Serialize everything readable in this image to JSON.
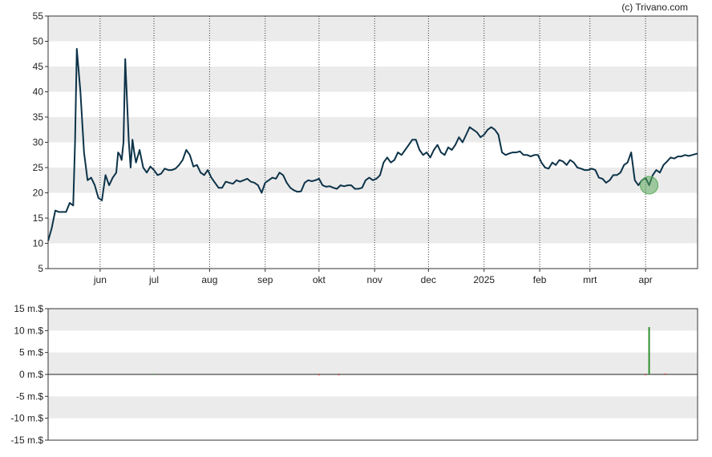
{
  "credit": "(c) Trivano.com",
  "chart_data": [
    {
      "type": "line",
      "ylim": [
        5,
        55
      ],
      "yticks": [
        5,
        10,
        15,
        20,
        25,
        30,
        35,
        40,
        45,
        50,
        55
      ],
      "x_range": [
        "2024-05-03",
        "2025-04-30"
      ],
      "month_ticks": [
        {
          "label": "jun",
          "date": "2024-06-01"
        },
        {
          "label": "jul",
          "date": "2024-07-01"
        },
        {
          "label": "aug",
          "date": "2024-08-01"
        },
        {
          "label": "sep",
          "date": "2024-09-01"
        },
        {
          "label": "okt",
          "date": "2024-10-01"
        },
        {
          "label": "nov",
          "date": "2024-11-01"
        },
        {
          "label": "dec",
          "date": "2024-12-01"
        },
        {
          "label": "2025",
          "date": "2025-01-01"
        },
        {
          "label": "feb",
          "date": "2025-02-01"
        },
        {
          "label": "mrt",
          "date": "2025-03-01"
        },
        {
          "label": "apr",
          "date": "2025-04-01"
        }
      ],
      "series": [
        {
          "color": "#0d3349",
          "points": [
            [
              "2024-05-03",
              10.5
            ],
            [
              "2024-05-05",
              13
            ],
            [
              "2024-05-07",
              16.5
            ],
            [
              "2024-05-09",
              16.2
            ],
            [
              "2024-05-13",
              16.2
            ],
            [
              "2024-05-15",
              18
            ],
            [
              "2024-05-17",
              17.5
            ],
            [
              "2024-05-18",
              30
            ],
            [
              "2024-05-19",
              48.5
            ],
            [
              "2024-05-21",
              40
            ],
            [
              "2024-05-23",
              28
            ],
            [
              "2024-05-25",
              22.5
            ],
            [
              "2024-05-27",
              23
            ],
            [
              "2024-05-29",
              21.5
            ],
            [
              "2024-05-31",
              19
            ],
            [
              "2024-06-02",
              18.5
            ],
            [
              "2024-06-04",
              23.5
            ],
            [
              "2024-06-06",
              21.5
            ],
            [
              "2024-06-08",
              23
            ],
            [
              "2024-06-10",
              24
            ],
            [
              "2024-06-11",
              28
            ],
            [
              "2024-06-12",
              27.5
            ],
            [
              "2024-06-13",
              26.5
            ],
            [
              "2024-06-14",
              30
            ],
            [
              "2024-06-15",
              46.5
            ],
            [
              "2024-06-16",
              38
            ],
            [
              "2024-06-17",
              30
            ],
            [
              "2024-06-18",
              25
            ],
            [
              "2024-06-19",
              30.5
            ],
            [
              "2024-06-20",
              28
            ],
            [
              "2024-06-21",
              26
            ],
            [
              "2024-06-23",
              28.5
            ],
            [
              "2024-06-25",
              25
            ],
            [
              "2024-06-27",
              24
            ],
            [
              "2024-06-29",
              25.2
            ],
            [
              "2024-07-01",
              24.5
            ],
            [
              "2024-07-03",
              23.5
            ],
            [
              "2024-07-05",
              23.8
            ],
            [
              "2024-07-07",
              24.8
            ],
            [
              "2024-07-09",
              24.5
            ],
            [
              "2024-07-11",
              24.5
            ],
            [
              "2024-07-13",
              24.8
            ],
            [
              "2024-07-15",
              25.5
            ],
            [
              "2024-07-17",
              26.5
            ],
            [
              "2024-07-19",
              28.5
            ],
            [
              "2024-07-21",
              27.5
            ],
            [
              "2024-07-23",
              25.2
            ],
            [
              "2024-07-25",
              25.5
            ],
            [
              "2024-07-27",
              24
            ],
            [
              "2024-07-29",
              23.5
            ],
            [
              "2024-07-31",
              24.5
            ],
            [
              "2024-08-02",
              23
            ],
            [
              "2024-08-04",
              22
            ],
            [
              "2024-08-06",
              21
            ],
            [
              "2024-08-08",
              21
            ],
            [
              "2024-08-10",
              22.2
            ],
            [
              "2024-08-12",
              22
            ],
            [
              "2024-08-14",
              21.8
            ],
            [
              "2024-08-16",
              22.5
            ],
            [
              "2024-08-18",
              22.2
            ],
            [
              "2024-08-20",
              22.5
            ],
            [
              "2024-08-22",
              22.8
            ],
            [
              "2024-08-24",
              22.2
            ],
            [
              "2024-08-26",
              22
            ],
            [
              "2024-08-28",
              21.5
            ],
            [
              "2024-08-30",
              20
            ],
            [
              "2024-09-01",
              22
            ],
            [
              "2024-09-03",
              22.5
            ],
            [
              "2024-09-05",
              23
            ],
            [
              "2024-09-07",
              22.8
            ],
            [
              "2024-09-09",
              24
            ],
            [
              "2024-09-11",
              23.5
            ],
            [
              "2024-09-13",
              22
            ],
            [
              "2024-09-15",
              21
            ],
            [
              "2024-09-17",
              20.5
            ],
            [
              "2024-09-19",
              20.2
            ],
            [
              "2024-09-21",
              20.3
            ],
            [
              "2024-09-23",
              22
            ],
            [
              "2024-09-25",
              22.5
            ],
            [
              "2024-09-27",
              22.3
            ],
            [
              "2024-09-29",
              22.5
            ],
            [
              "2024-10-01",
              22.8
            ],
            [
              "2024-10-03",
              21.5
            ],
            [
              "2024-10-05",
              21.2
            ],
            [
              "2024-10-07",
              21.3
            ],
            [
              "2024-10-09",
              21
            ],
            [
              "2024-10-11",
              20.8
            ],
            [
              "2024-10-13",
              21.5
            ],
            [
              "2024-10-15",
              21.3
            ],
            [
              "2024-10-17",
              21.5
            ],
            [
              "2024-10-19",
              21.5
            ],
            [
              "2024-10-21",
              20.8
            ],
            [
              "2024-10-23",
              20.8
            ],
            [
              "2024-10-25",
              21
            ],
            [
              "2024-10-27",
              22.5
            ],
            [
              "2024-10-29",
              23
            ],
            [
              "2024-10-31",
              22.5
            ],
            [
              "2024-11-02",
              22.8
            ],
            [
              "2024-11-04",
              23.5
            ],
            [
              "2024-11-06",
              26
            ],
            [
              "2024-11-08",
              27
            ],
            [
              "2024-11-10",
              26
            ],
            [
              "2024-11-12",
              26.5
            ],
            [
              "2024-11-14",
              28
            ],
            [
              "2024-11-16",
              27.5
            ],
            [
              "2024-11-18",
              28.5
            ],
            [
              "2024-11-20",
              29.5
            ],
            [
              "2024-11-22",
              30.5
            ],
            [
              "2024-11-24",
              30.5
            ],
            [
              "2024-11-26",
              28.5
            ],
            [
              "2024-11-28",
              27.5
            ],
            [
              "2024-11-30",
              28
            ],
            [
              "2024-12-02",
              27
            ],
            [
              "2024-12-04",
              28.5
            ],
            [
              "2024-12-06",
              29.5
            ],
            [
              "2024-12-08",
              28
            ],
            [
              "2024-12-10",
              27.5
            ],
            [
              "2024-12-12",
              29
            ],
            [
              "2024-12-14",
              28.5
            ],
            [
              "2024-12-16",
              29.5
            ],
            [
              "2024-12-18",
              31
            ],
            [
              "2024-12-20",
              30
            ],
            [
              "2024-12-22",
              31.5
            ],
            [
              "2024-12-24",
              33
            ],
            [
              "2024-12-26",
              32.5
            ],
            [
              "2024-12-28",
              32
            ],
            [
              "2024-12-30",
              31
            ],
            [
              "2025-01-01",
              31.5
            ],
            [
              "2025-01-03",
              32.5
            ],
            [
              "2025-01-05",
              33
            ],
            [
              "2025-01-07",
              32.5
            ],
            [
              "2025-01-09",
              31.5
            ],
            [
              "2025-01-11",
              28
            ],
            [
              "2025-01-13",
              27.5
            ],
            [
              "2025-01-15",
              27.8
            ],
            [
              "2025-01-17",
              28
            ],
            [
              "2025-01-19",
              28
            ],
            [
              "2025-01-21",
              28.2
            ],
            [
              "2025-01-23",
              27.5
            ],
            [
              "2025-01-25",
              27.5
            ],
            [
              "2025-01-27",
              27.2
            ],
            [
              "2025-01-29",
              27.5
            ],
            [
              "2025-01-31",
              27.5
            ],
            [
              "2025-02-02",
              26
            ],
            [
              "2025-02-04",
              25
            ],
            [
              "2025-02-06",
              24.8
            ],
            [
              "2025-02-08",
              26
            ],
            [
              "2025-02-10",
              25.5
            ],
            [
              "2025-02-12",
              26.5
            ],
            [
              "2025-02-14",
              26.2
            ],
            [
              "2025-02-16",
              25.5
            ],
            [
              "2025-02-18",
              26.5
            ],
            [
              "2025-02-20",
              26
            ],
            [
              "2025-02-22",
              25
            ],
            [
              "2025-02-24",
              24.8
            ],
            [
              "2025-02-26",
              24.5
            ],
            [
              "2025-02-28",
              24.5
            ],
            [
              "2025-03-02",
              24.8
            ],
            [
              "2025-03-04",
              24.5
            ],
            [
              "2025-03-06",
              23
            ],
            [
              "2025-03-08",
              22.8
            ],
            [
              "2025-03-10",
              22
            ],
            [
              "2025-03-12",
              22.5
            ],
            [
              "2025-03-14",
              23.5
            ],
            [
              "2025-03-16",
              23.5
            ],
            [
              "2025-03-18",
              24
            ],
            [
              "2025-03-20",
              25.5
            ],
            [
              "2025-03-22",
              26
            ],
            [
              "2025-03-24",
              28
            ],
            [
              "2025-03-26",
              22.5
            ],
            [
              "2025-03-28",
              21.5
            ],
            [
              "2025-03-30",
              22.5
            ],
            [
              "2025-04-01",
              23
            ],
            [
              "2025-04-03",
              21.5
            ],
            [
              "2025-04-05",
              23.5
            ],
            [
              "2025-04-07",
              24.5
            ],
            [
              "2025-04-09",
              24
            ],
            [
              "2025-04-11",
              25.5
            ],
            [
              "2025-04-13",
              26.2
            ],
            [
              "2025-04-15",
              27
            ],
            [
              "2025-04-17",
              26.8
            ],
            [
              "2025-04-19",
              27.2
            ],
            [
              "2025-04-21",
              27.2
            ],
            [
              "2025-04-23",
              27.5
            ],
            [
              "2025-04-25",
              27.3
            ],
            [
              "2025-04-27",
              27.5
            ],
            [
              "2025-04-30",
              27.8
            ]
          ]
        }
      ],
      "markers": [
        {
          "date": "2025-04-03",
          "value": 21.5,
          "color": "#5daa5d"
        }
      ]
    },
    {
      "type": "bar",
      "ylim": [
        -15,
        15
      ],
      "yticks": [
        {
          "value": 15,
          "label": "15 m.$"
        },
        {
          "value": 10,
          "label": "10 m.$"
        },
        {
          "value": 5,
          "label": "5 m.$"
        },
        {
          "value": 0,
          "label": "0 m.$"
        },
        {
          "value": -5,
          "label": "-5 m.$"
        },
        {
          "value": -10,
          "label": "-10 m.$"
        },
        {
          "value": -15,
          "label": "-15 m.$"
        }
      ],
      "bars": [
        {
          "date": "2024-07-01",
          "value": 0.2,
          "color": "#5daa5d"
        },
        {
          "date": "2024-10-01",
          "value": -0.2,
          "color": "#cc3333"
        },
        {
          "date": "2024-10-12",
          "value": -0.2,
          "color": "#cc3333"
        },
        {
          "date": "2025-04-01",
          "value": -0.2,
          "color": "#cc3333"
        },
        {
          "date": "2025-04-03",
          "value": 10.8,
          "color": "#2f8f2f"
        },
        {
          "date": "2025-04-12",
          "value": 0.2,
          "color": "#cc3333"
        }
      ]
    }
  ]
}
